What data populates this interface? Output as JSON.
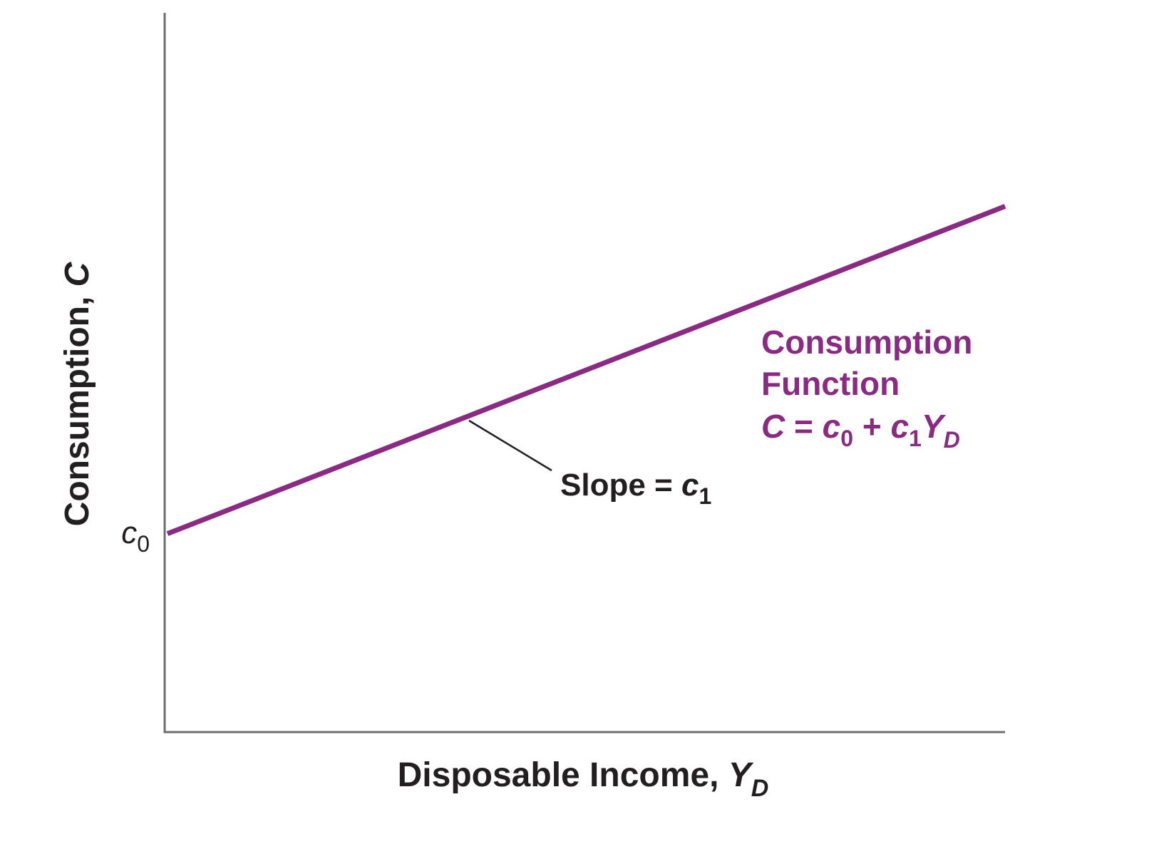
{
  "chart_data": {
    "type": "line",
    "colors": {
      "series": "#8b2a82",
      "axis": "#6d6e71",
      "text": "#231f20"
    },
    "xlabel": {
      "main": "Disposable Income, ",
      "var": "Y",
      "sub": "D"
    },
    "ylabel": {
      "main": "Consumption, ",
      "var": "C"
    },
    "y_tick": {
      "var": "c",
      "sub": "0"
    },
    "slope_label": {
      "main": "Slope = ",
      "var": "c",
      "sub": "1"
    },
    "function_label": {
      "line1": "Consumption",
      "line2": "Function",
      "equation": {
        "lhs": "C",
        "eq": " = ",
        "c0": "c",
        "c0_sub": "0",
        "plus": " + ",
        "c1": "c",
        "c1_sub": "1",
        "y": "Y",
        "y_sub": "D"
      }
    },
    "series": [
      {
        "values": [
          {
            "x": 0,
            "y": 1
          },
          {
            "x": 10,
            "y": 4.3
          }
        ]
      }
    ],
    "xlim": [
      0,
      10
    ],
    "ylim": [
      -1,
      6.25
    ],
    "grid": false,
    "legend": "none"
  }
}
